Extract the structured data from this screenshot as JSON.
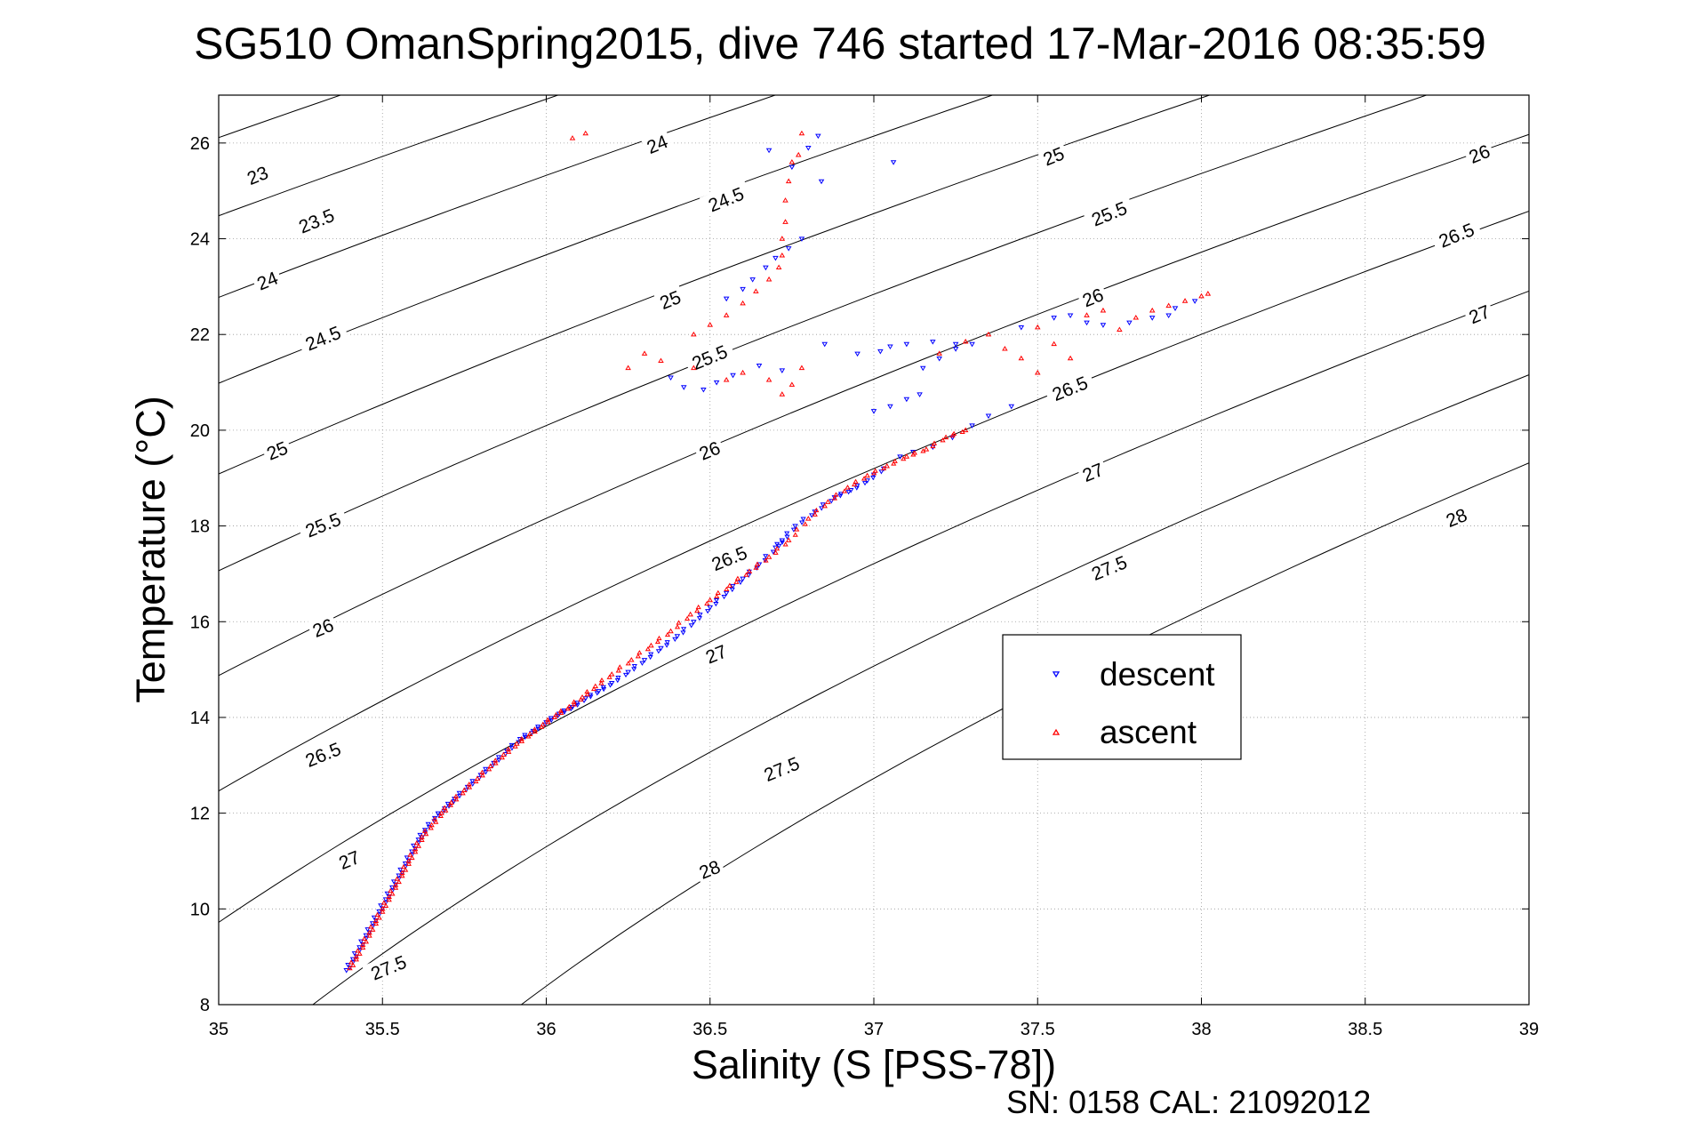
{
  "chart_data": {
    "type": "scatter",
    "title": "SG510 OmanSpring2015, dive 746 started 17-Mar-2016 08:35:59",
    "xlabel": "Salinity (S [PSS-78])",
    "ylabel": "Temperature (°C)",
    "xlim": [
      35,
      39
    ],
    "ylim": [
      8,
      27
    ],
    "xticks": [
      "35",
      "35.5",
      "36",
      "36.5",
      "37",
      "37.5",
      "38",
      "38.5",
      "39"
    ],
    "yticks": [
      "8",
      "10",
      "12",
      "14",
      "16",
      "18",
      "20",
      "22",
      "24",
      "26"
    ],
    "grid": true,
    "legend_position": "center-right",
    "footer": "SN: 0158  CAL: 21092012",
    "contours": {
      "levels": [
        23,
        23.5,
        24,
        24.5,
        25,
        25.5,
        26,
        26.5,
        27,
        27.5,
        28
      ],
      "labels": [
        {
          "text": "23",
          "x": 35.12,
          "y": 25.3
        },
        {
          "text": "23.5",
          "x": 35.3,
          "y": 24.35
        },
        {
          "text": "24",
          "x": 35.15,
          "y": 23.1
        },
        {
          "text": "24.5",
          "x": 35.32,
          "y": 21.9
        },
        {
          "text": "25",
          "x": 35.18,
          "y": 19.55
        },
        {
          "text": "25.5",
          "x": 35.32,
          "y": 18.0
        },
        {
          "text": "26",
          "x": 35.32,
          "y": 15.85
        },
        {
          "text": "26.5",
          "x": 35.32,
          "y": 13.2
        },
        {
          "text": "27",
          "x": 35.4,
          "y": 11.0
        },
        {
          "text": "27.5",
          "x": 35.52,
          "y": 8.75
        },
        {
          "text": "24",
          "x": 36.34,
          "y": 25.95
        },
        {
          "text": "24.5",
          "x": 36.55,
          "y": 24.8
        },
        {
          "text": "25",
          "x": 36.38,
          "y": 22.7
        },
        {
          "text": "25.5",
          "x": 36.5,
          "y": 21.5
        },
        {
          "text": "26",
          "x": 36.5,
          "y": 19.55
        },
        {
          "text": "26.5",
          "x": 36.56,
          "y": 17.3
        },
        {
          "text": "27",
          "x": 36.52,
          "y": 15.3
        },
        {
          "text": "27.5",
          "x": 36.72,
          "y": 12.9
        },
        {
          "text": "28",
          "x": 36.5,
          "y": 10.8
        },
        {
          "text": "25",
          "x": 37.55,
          "y": 25.7
        },
        {
          "text": "25.5",
          "x": 37.72,
          "y": 24.5
        },
        {
          "text": "26",
          "x": 37.67,
          "y": 22.75
        },
        {
          "text": "26.5",
          "x": 37.6,
          "y": 20.85
        },
        {
          "text": "27",
          "x": 37.67,
          "y": 19.1
        },
        {
          "text": "27.5",
          "x": 37.72,
          "y": 17.1
        },
        {
          "text": "28",
          "x": 38.78,
          "y": 18.15
        },
        {
          "text": "26",
          "x": 38.85,
          "y": 25.75
        },
        {
          "text": "26.5",
          "x": 38.78,
          "y": 24.05
        },
        {
          "text": "27",
          "x": 38.85,
          "y": 22.4
        }
      ]
    },
    "series": [
      {
        "name": "descent",
        "color": "#0000ff",
        "marker": "triangle-down",
        "points": [
          [
            35.39,
            8.72
          ],
          [
            35.41,
            8.95
          ],
          [
            35.43,
            9.2
          ],
          [
            35.45,
            9.45
          ],
          [
            35.47,
            9.7
          ],
          [
            35.49,
            9.95
          ],
          [
            35.51,
            10.2
          ],
          [
            35.53,
            10.45
          ],
          [
            35.55,
            10.7
          ],
          [
            35.57,
            10.95
          ],
          [
            35.59,
            11.2
          ],
          [
            35.61,
            11.45
          ],
          [
            35.63,
            11.65
          ],
          [
            35.66,
            11.9
          ],
          [
            35.69,
            12.1
          ],
          [
            35.72,
            12.3
          ],
          [
            35.76,
            12.55
          ],
          [
            35.8,
            12.8
          ],
          [
            35.84,
            13.05
          ],
          [
            35.88,
            13.3
          ],
          [
            35.92,
            13.55
          ],
          [
            35.96,
            13.72
          ],
          [
            36.0,
            13.9
          ],
          [
            36.04,
            14.08
          ],
          [
            36.08,
            14.22
          ],
          [
            36.12,
            14.4
          ],
          [
            36.16,
            14.55
          ],
          [
            36.2,
            14.72
          ],
          [
            36.25,
            14.95
          ],
          [
            36.3,
            15.2
          ],
          [
            36.35,
            15.45
          ],
          [
            36.4,
            15.7
          ],
          [
            36.45,
            16.0
          ],
          [
            36.5,
            16.3
          ],
          [
            36.55,
            16.6
          ],
          [
            36.6,
            16.9
          ],
          [
            36.65,
            17.2
          ],
          [
            36.7,
            17.55
          ],
          [
            36.72,
            17.7
          ],
          [
            36.76,
            18.0
          ],
          [
            36.82,
            18.3
          ],
          [
            36.88,
            18.6
          ],
          [
            36.93,
            18.75
          ],
          [
            36.98,
            18.95
          ],
          [
            37.03,
            19.2
          ],
          [
            37.08,
            19.45
          ],
          [
            37.12,
            19.55
          ],
          [
            37.18,
            19.65
          ],
          [
            37.24,
            19.85
          ],
          [
            37.3,
            20.1
          ],
          [
            37.35,
            20.3
          ],
          [
            37.42,
            20.5
          ],
          [
            36.55,
            22.75
          ],
          [
            36.6,
            22.95
          ],
          [
            36.63,
            23.15
          ],
          [
            36.67,
            23.4
          ],
          [
            36.7,
            23.6
          ],
          [
            36.74,
            23.8
          ],
          [
            36.78,
            24.0
          ],
          [
            36.38,
            21.1
          ],
          [
            36.42,
            20.9
          ],
          [
            36.48,
            20.85
          ],
          [
            36.52,
            21.0
          ],
          [
            36.57,
            21.15
          ],
          [
            36.65,
            21.35
          ],
          [
            36.72,
            21.25
          ],
          [
            36.85,
            21.8
          ],
          [
            36.95,
            21.6
          ],
          [
            37.02,
            21.65
          ],
          [
            37.05,
            21.75
          ],
          [
            37.1,
            21.8
          ],
          [
            37.18,
            21.85
          ],
          [
            37.25,
            21.8
          ],
          [
            37.0,
            20.4
          ],
          [
            37.05,
            20.5
          ],
          [
            37.1,
            20.65
          ],
          [
            37.14,
            20.75
          ],
          [
            37.15,
            21.3
          ],
          [
            37.2,
            21.5
          ],
          [
            37.25,
            21.7
          ],
          [
            37.3,
            21.8
          ],
          [
            37.45,
            22.15
          ],
          [
            37.55,
            22.35
          ],
          [
            37.6,
            22.4
          ],
          [
            37.65,
            22.25
          ],
          [
            37.7,
            22.2
          ],
          [
            37.78,
            22.25
          ],
          [
            37.85,
            22.35
          ],
          [
            37.92,
            22.55
          ],
          [
            37.98,
            22.7
          ],
          [
            37.9,
            22.4
          ],
          [
            36.8,
            25.9
          ],
          [
            36.83,
            26.15
          ],
          [
            36.68,
            25.85
          ],
          [
            36.75,
            25.5
          ],
          [
            37.06,
            25.6
          ],
          [
            36.84,
            25.2
          ]
        ]
      },
      {
        "name": "ascent",
        "color": "#ff0000",
        "marker": "triangle-up",
        "points": [
          [
            35.4,
            8.76
          ],
          [
            35.42,
            9.0
          ],
          [
            35.44,
            9.25
          ],
          [
            35.46,
            9.5
          ],
          [
            35.48,
            9.75
          ],
          [
            35.5,
            10.0
          ],
          [
            35.52,
            10.25
          ],
          [
            35.54,
            10.5
          ],
          [
            35.56,
            10.75
          ],
          [
            35.58,
            11.0
          ],
          [
            35.6,
            11.25
          ],
          [
            35.62,
            11.5
          ],
          [
            35.65,
            11.75
          ],
          [
            35.68,
            12.0
          ],
          [
            35.71,
            12.22
          ],
          [
            35.75,
            12.48
          ],
          [
            35.79,
            12.72
          ],
          [
            35.83,
            12.98
          ],
          [
            35.87,
            13.22
          ],
          [
            35.91,
            13.45
          ],
          [
            35.95,
            13.65
          ],
          [
            35.99,
            13.85
          ],
          [
            36.03,
            14.05
          ],
          [
            36.07,
            14.22
          ],
          [
            36.11,
            14.42
          ],
          [
            36.15,
            14.65
          ],
          [
            36.2,
            14.9
          ],
          [
            36.26,
            15.2
          ],
          [
            36.32,
            15.5
          ],
          [
            36.38,
            15.8
          ],
          [
            36.44,
            16.15
          ],
          [
            36.5,
            16.45
          ],
          [
            36.56,
            16.75
          ],
          [
            36.62,
            17.05
          ],
          [
            36.68,
            17.35
          ],
          [
            36.74,
            17.7
          ],
          [
            36.8,
            18.15
          ],
          [
            36.86,
            18.5
          ],
          [
            36.92,
            18.8
          ],
          [
            36.98,
            19.05
          ],
          [
            37.04,
            19.25
          ],
          [
            37.1,
            19.45
          ],
          [
            37.16,
            19.6
          ],
          [
            37.22,
            19.85
          ],
          [
            37.28,
            20.0
          ],
          [
            36.45,
            22.0
          ],
          [
            36.5,
            22.2
          ],
          [
            36.55,
            22.4
          ],
          [
            36.6,
            22.65
          ],
          [
            36.64,
            22.9
          ],
          [
            36.68,
            23.15
          ],
          [
            36.71,
            23.4
          ],
          [
            36.72,
            23.65
          ],
          [
            36.72,
            24.0
          ],
          [
            36.73,
            24.35
          ],
          [
            36.73,
            24.8
          ],
          [
            36.74,
            25.2
          ],
          [
            36.75,
            25.6
          ],
          [
            36.77,
            25.75
          ],
          [
            36.3,
            21.6
          ],
          [
            36.25,
            21.3
          ],
          [
            36.35,
            21.45
          ],
          [
            36.45,
            21.3
          ],
          [
            36.55,
            21.05
          ],
          [
            36.6,
            21.2
          ],
          [
            36.68,
            21.05
          ],
          [
            36.72,
            20.75
          ],
          [
            36.78,
            21.3
          ],
          [
            36.75,
            20.95
          ],
          [
            37.2,
            21.6
          ],
          [
            37.28,
            21.85
          ],
          [
            37.35,
            22.0
          ],
          [
            37.4,
            21.7
          ],
          [
            37.45,
            21.5
          ],
          [
            37.5,
            22.15
          ],
          [
            37.55,
            21.8
          ],
          [
            37.6,
            21.5
          ],
          [
            37.65,
            22.4
          ],
          [
            37.7,
            22.5
          ],
          [
            37.75,
            22.1
          ],
          [
            37.8,
            22.35
          ],
          [
            37.85,
            22.5
          ],
          [
            37.9,
            22.6
          ],
          [
            37.95,
            22.7
          ],
          [
            38.0,
            22.8
          ],
          [
            38.02,
            22.85
          ],
          [
            37.5,
            21.2
          ],
          [
            36.12,
            26.2
          ],
          [
            36.08,
            26.1
          ],
          [
            36.78,
            26.2
          ]
        ]
      }
    ]
  }
}
